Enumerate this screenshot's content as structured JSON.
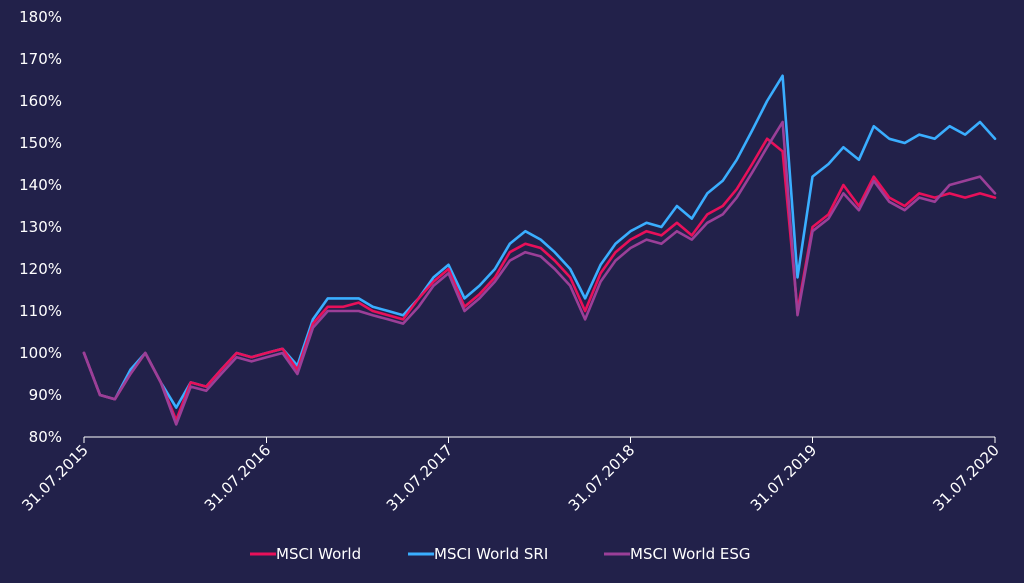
{
  "chart_data": {
    "type": "line",
    "title": "",
    "xlabel": "",
    "ylabel": "",
    "ylim": [
      80,
      180
    ],
    "yticks": [
      {
        "value": 80,
        "label": "80%"
      },
      {
        "value": 90,
        "label": "90%"
      },
      {
        "value": 100,
        "label": "100%"
      },
      {
        "value": 110,
        "label": "110%"
      },
      {
        "value": 120,
        "label": "120%"
      },
      {
        "value": 130,
        "label": "130%"
      },
      {
        "value": 140,
        "label": "140%"
      },
      {
        "value": 150,
        "label": "150%"
      },
      {
        "value": 160,
        "label": "160%"
      },
      {
        "value": 170,
        "label": "170%"
      },
      {
        "value": 180,
        "label": "180%"
      }
    ],
    "xlim": [
      "2015-07-31",
      "2020-07-31"
    ],
    "xticks": [
      {
        "value": "2015-07-31",
        "label": "31.07.2015"
      },
      {
        "value": "2016-07-31",
        "label": "31.07.2016"
      },
      {
        "value": "2017-07-31",
        "label": "31.07.2017"
      },
      {
        "value": "2018-07-31",
        "label": "31.07.2018"
      },
      {
        "value": "2019-07-31",
        "label": "31.07.2019"
      },
      {
        "value": "2020-07-31",
        "label": "31.07.2020"
      }
    ],
    "grid": false,
    "legend": "bottom",
    "x": [
      "2015-07-31",
      "2015-09-01",
      "2015-10-01",
      "2015-11-01",
      "2015-12-01",
      "2016-01-01",
      "2016-02-01",
      "2016-03-01",
      "2016-04-01",
      "2016-05-01",
      "2016-06-01",
      "2016-07-01",
      "2016-07-31",
      "2016-09-01",
      "2016-10-01",
      "2016-11-01",
      "2016-12-01",
      "2017-01-01",
      "2017-02-01",
      "2017-03-01",
      "2017-04-01",
      "2017-05-01",
      "2017-06-01",
      "2017-07-01",
      "2017-07-31",
      "2017-09-01",
      "2017-10-01",
      "2017-11-01",
      "2017-12-01",
      "2018-01-01",
      "2018-02-01",
      "2018-03-01",
      "2018-04-01",
      "2018-05-01",
      "2018-06-01",
      "2018-07-01",
      "2018-07-31",
      "2018-09-01",
      "2018-10-01",
      "2018-11-01",
      "2018-12-01",
      "2019-01-01",
      "2019-02-01",
      "2019-03-01",
      "2019-04-01",
      "2019-05-01",
      "2019-06-01",
      "2019-07-01",
      "2019-07-31",
      "2019-09-01",
      "2019-10-01",
      "2019-11-01",
      "2019-12-01",
      "2020-01-01",
      "2020-02-01",
      "2020-03-01",
      "2020-04-01",
      "2020-05-01",
      "2020-06-01",
      "2020-07-01",
      "2020-07-31"
    ],
    "series": [
      {
        "name": "MSCI World",
        "color": "#e8105a",
        "values": [
          100,
          90,
          89,
          95,
          100,
          93,
          84,
          93,
          92,
          96,
          100,
          99,
          100,
          101,
          96,
          107,
          111,
          111,
          112,
          110,
          109,
          108,
          113,
          117,
          120,
          111,
          114,
          118,
          124,
          126,
          125,
          122,
          118,
          110,
          119,
          124,
          127,
          129,
          128,
          131,
          128,
          133,
          135,
          139,
          145,
          151,
          148,
          110,
          130,
          133,
          140,
          135,
          142,
          137,
          135,
          138,
          137,
          138,
          137,
          138,
          137
        ]
      },
      {
        "name": "MSCI World SRI",
        "color": "#3aaeff",
        "values": [
          100,
          90,
          89,
          96,
          100,
          93,
          87,
          93,
          92,
          96,
          100,
          99,
          100,
          101,
          97,
          108,
          113,
          113,
          113,
          111,
          110,
          109,
          113,
          118,
          121,
          113,
          116,
          120,
          126,
          129,
          127,
          124,
          120,
          113,
          121,
          126,
          129,
          131,
          130,
          135,
          132,
          138,
          141,
          146,
          153,
          160,
          166,
          118,
          142,
          145,
          149,
          146,
          154,
          151,
          150,
          152,
          151,
          154,
          152,
          155,
          151
        ]
      },
      {
        "name": "MSCI World ESG",
        "color": "#9b3f98",
        "values": [
          100,
          90,
          89,
          95,
          100,
          93,
          83,
          92,
          91,
          95,
          99,
          98,
          99,
          100,
          95,
          106,
          110,
          110,
          110,
          109,
          108,
          107,
          111,
          116,
          119,
          110,
          113,
          117,
          122,
          124,
          123,
          120,
          116,
          108,
          117,
          122,
          125,
          127,
          126,
          129,
          127,
          131,
          133,
          137,
          143,
          149,
          155,
          109,
          129,
          132,
          138,
          134,
          141,
          136,
          134,
          137,
          136,
          140,
          141,
          142,
          138
        ]
      }
    ]
  }
}
